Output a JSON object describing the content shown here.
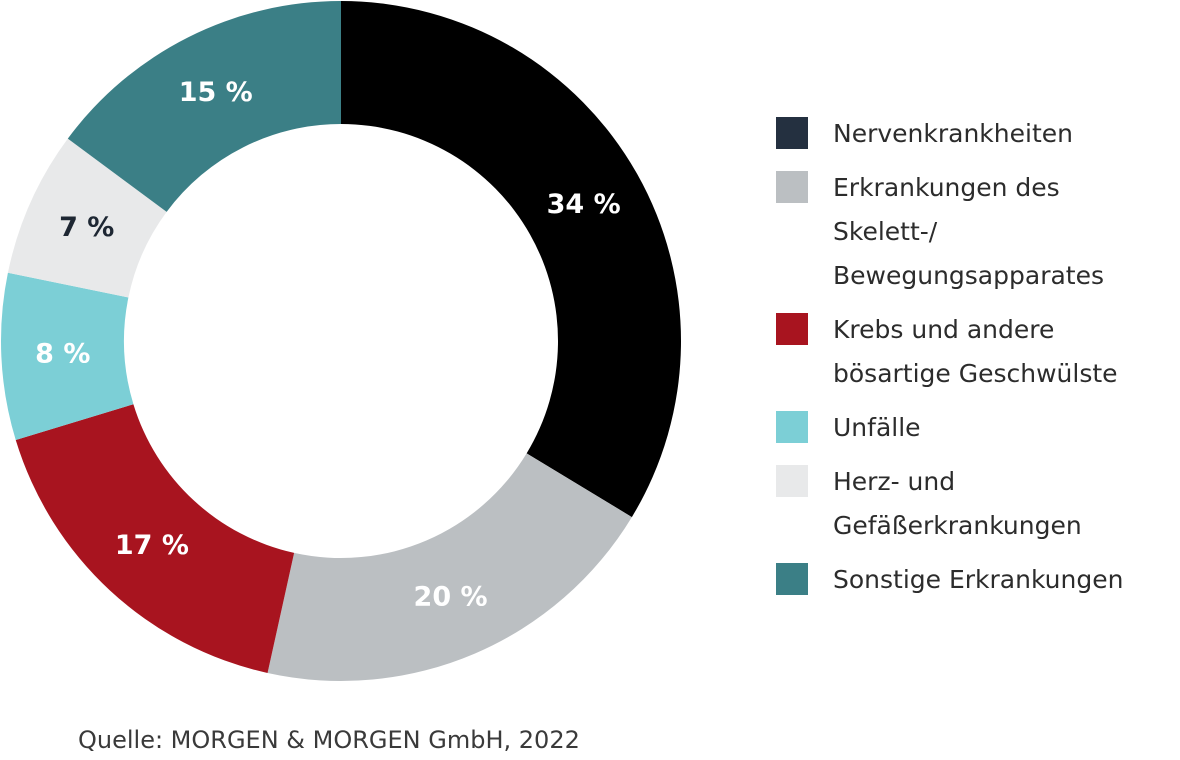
{
  "chart_data": {
    "type": "pie",
    "donut": true,
    "title": "",
    "categories": [
      "Nervenkrankheiten",
      "Erkrankungen des Skelett-/\nBewegungsapparates",
      "Krebs und andere\nbösartige Geschwülste",
      "Unfälle",
      "Herz- und\nGefäßerkrankungen",
      "Sonstige Erkrankungen"
    ],
    "values": [
      34,
      20,
      17,
      8,
      7,
      15
    ],
    "value_labels": [
      "34 %",
      "20 %",
      "17 %",
      "8 %",
      "7 %",
      "15 %"
    ],
    "colors": [
      "#000000",
      "#bbbfc2",
      "#a8141f",
      "#7ccfd6",
      "#e8e9ea",
      "#3b7f86"
    ],
    "label_colors": [
      "#ffffff",
      "#ffffff",
      "#ffffff",
      "#ffffff",
      "#1e2733",
      "#ffffff"
    ],
    "legend_colors": [
      "#243040",
      "#bbbfc2",
      "#a8141f",
      "#7ccfd6",
      "#e8e9ea",
      "#3b7f86"
    ],
    "legend_position": "right"
  },
  "source": "Quelle: MORGEN & MORGEN GmbH, 2022"
}
